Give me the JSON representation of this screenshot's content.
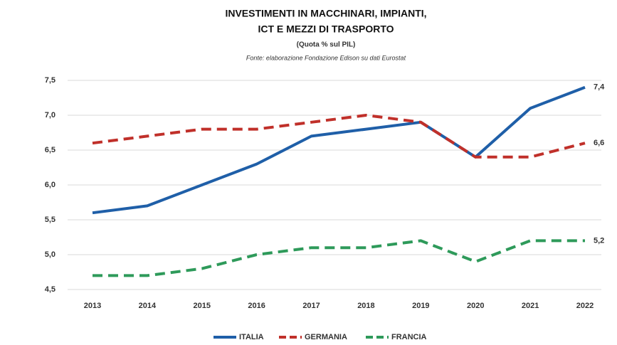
{
  "chart_data": {
    "type": "line",
    "title": [
      "INVESTIMENTI IN MACCHINARI, IMPIANTI,",
      "ICT E MEZZI DI TRASPORTO"
    ],
    "subtitle": "(Quota % sul PIL)",
    "source": "Fonte: elaborazione Fondazione Edison su dati Eurostat",
    "categories": [
      "2013",
      "2014",
      "2015",
      "2016",
      "2017",
      "2018",
      "2019",
      "2020",
      "2021",
      "2022"
    ],
    "series": [
      {
        "name": "ITALIA",
        "color": "#1f5fa8",
        "dash": false,
        "values": [
          5.6,
          5.7,
          6.0,
          6.3,
          6.7,
          6.8,
          6.9,
          6.4,
          7.1,
          7.4
        ],
        "value_labels": [
          null,
          null,
          null,
          null,
          null,
          null,
          null,
          null,
          null,
          "7,4"
        ]
      },
      {
        "name": "GERMANIA",
        "color": "#c0302a",
        "dash": true,
        "values": [
          6.6,
          6.7,
          6.8,
          6.8,
          6.9,
          7.0,
          6.9,
          6.4,
          6.4,
          6.6
        ],
        "value_labels": [
          null,
          null,
          null,
          null,
          null,
          null,
          null,
          null,
          null,
          "6,6"
        ]
      },
      {
        "name": "FRANCIA",
        "color": "#2e9a5a",
        "dash": true,
        "values": [
          4.7,
          4.7,
          4.8,
          5.0,
          5.1,
          5.1,
          5.2,
          4.9,
          5.2,
          5.2
        ],
        "value_labels": [
          null,
          null,
          null,
          null,
          null,
          null,
          null,
          null,
          null,
          "5,2"
        ]
      }
    ],
    "ylim": [
      4.5,
      7.5
    ],
    "yticks": [
      {
        "value": 4.5,
        "label": "4,5"
      },
      {
        "value": 5.0,
        "label": "5,0"
      },
      {
        "value": 5.5,
        "label": "5,5"
      },
      {
        "value": 6.0,
        "label": "6,0"
      },
      {
        "value": 6.5,
        "label": "6,5"
      },
      {
        "value": 7.0,
        "label": "7,0"
      },
      {
        "value": 7.5,
        "label": "7,5"
      }
    ],
    "grid": true,
    "legend": "bottom"
  }
}
